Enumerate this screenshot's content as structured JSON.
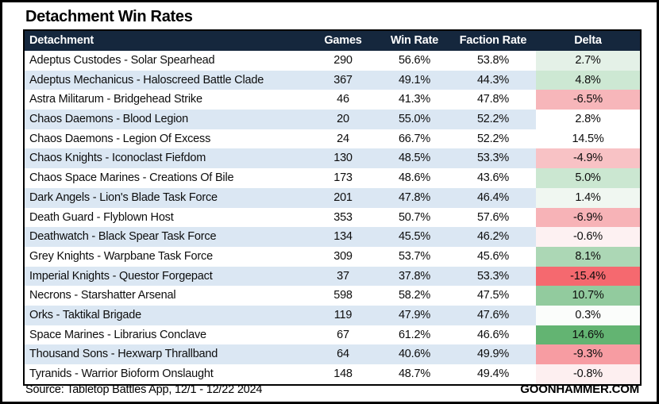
{
  "title": "Detachment Win Rates",
  "footer": {
    "source": "Source: Tabletop Battles App, 12/1 - 12/22 2024",
    "site": "GOONHAMMER.COM"
  },
  "colors": {
    "header_bg": "#15273d",
    "row_alt_bg": "#dbe7f3",
    "table_border": "#000000",
    "delta_positive_strong": "#63b472",
    "delta_negative_strong": "#f5696f"
  },
  "chart_data": {
    "type": "table",
    "title": "Detachment Win Rates",
    "columns": [
      "Detachment",
      "Games",
      "Win Rate",
      "Faction Rate",
      "Delta"
    ],
    "rows": [
      {
        "detachment": "Adeptus Custodes - Solar Spearhead",
        "games": "290",
        "win_rate": "56.6%",
        "faction_rate": "53.8%",
        "delta": "2.7%",
        "delta_bg": "#e4f1e7"
      },
      {
        "detachment": "Adeptus Mechanicus - Haloscreed Battle Clade",
        "games": "367",
        "win_rate": "49.1%",
        "faction_rate": "44.3%",
        "delta": "4.8%",
        "delta_bg": "#cde8d3"
      },
      {
        "detachment": "Astra Militarum - Bridgehead Strike",
        "games": "46",
        "win_rate": "41.3%",
        "faction_rate": "47.8%",
        "delta": "-6.5%",
        "delta_bg": "#f7b6ba"
      },
      {
        "detachment": "Chaos Daemons - Blood Legion",
        "games": "20",
        "win_rate": "55.0%",
        "faction_rate": "52.2%",
        "delta": "2.8%",
        "delta_bg": "#ffffff"
      },
      {
        "detachment": "Chaos Daemons - Legion Of Excess",
        "games": "24",
        "win_rate": "66.7%",
        "faction_rate": "52.2%",
        "delta": "14.5%",
        "delta_bg": "#ffffff"
      },
      {
        "detachment": "Chaos Knights - Iconoclast Fiefdom",
        "games": "130",
        "win_rate": "48.5%",
        "faction_rate": "53.3%",
        "delta": "-4.9%",
        "delta_bg": "#f8c2c5"
      },
      {
        "detachment": "Chaos Space Marines - Creations Of Bile",
        "games": "173",
        "win_rate": "48.6%",
        "faction_rate": "43.6%",
        "delta": "5.0%",
        "delta_bg": "#cbe7d1"
      },
      {
        "detachment": "Dark Angels - Lion's Blade Task Force",
        "games": "201",
        "win_rate": "47.8%",
        "faction_rate": "46.4%",
        "delta": "1.4%",
        "delta_bg": "#f0f7f1"
      },
      {
        "detachment": "Death Guard - Flyblown Host",
        "games": "353",
        "win_rate": "50.7%",
        "faction_rate": "57.6%",
        "delta": "-6.9%",
        "delta_bg": "#f7b3b7"
      },
      {
        "detachment": "Deathwatch - Black Spear Task Force",
        "games": "134",
        "win_rate": "45.5%",
        "faction_rate": "46.2%",
        "delta": "-0.6%",
        "delta_bg": "#fdf1f2"
      },
      {
        "detachment": "Grey Knights - Warpbane Task Force",
        "games": "309",
        "win_rate": "53.7%",
        "faction_rate": "45.6%",
        "delta": "8.1%",
        "delta_bg": "#acd7b5"
      },
      {
        "detachment": "Imperial Knights - Questor Forgepact",
        "games": "37",
        "win_rate": "37.8%",
        "faction_rate": "53.3%",
        "delta": "-15.4%",
        "delta_bg": "#f5696f"
      },
      {
        "detachment": "Necrons - Starshatter Arsenal",
        "games": "598",
        "win_rate": "58.2%",
        "faction_rate": "47.5%",
        "delta": "10.7%",
        "delta_bg": "#92cb9e"
      },
      {
        "detachment": "Orks - Taktikal Brigade",
        "games": "119",
        "win_rate": "47.9%",
        "faction_rate": "47.6%",
        "delta": "0.3%",
        "delta_bg": "#fbfdfb"
      },
      {
        "detachment": "Space Marines - Librarius Conclave",
        "games": "67",
        "win_rate": "61.2%",
        "faction_rate": "46.6%",
        "delta": "14.6%",
        "delta_bg": "#63b472"
      },
      {
        "detachment": "Thousand Sons - Hexwarp Thrallband",
        "games": "64",
        "win_rate": "40.6%",
        "faction_rate": "49.9%",
        "delta": "-9.3%",
        "delta_bg": "#f79ca2"
      },
      {
        "detachment": "Tyranids - Warrior Bioform Onslaught",
        "games": "148",
        "win_rate": "48.7%",
        "faction_rate": "49.4%",
        "delta": "-0.8%",
        "delta_bg": "#fdeff0"
      }
    ]
  }
}
